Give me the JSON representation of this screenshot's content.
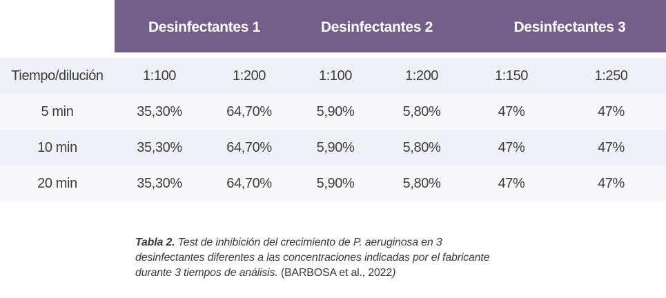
{
  "table": {
    "groups": [
      "Desinfectantes 1",
      "Desinfectantes 2",
      "Desinfectantes 3"
    ],
    "header_row": [
      "Tiempo/dilución",
      "1:100",
      "1:200",
      "1:100",
      "1:200",
      "1:150",
      "1:250"
    ],
    "rows": [
      [
        "5 min",
        "35,30%",
        "64,70%",
        "5,90%",
        "5,80%",
        "47%",
        "47%"
      ],
      [
        "10 min",
        "35,30%",
        "64,70%",
        "5,90%",
        "5,80%",
        "47%",
        "47%"
      ],
      [
        "20 min",
        "35,30%",
        "64,70%",
        "5,90%",
        "5,80%",
        "47%",
        "47%"
      ]
    ]
  },
  "caption": {
    "label": "Tabla 2.",
    "line1": " Test de inhibición del crecimiento de P. aeruginosa en 3",
    "line2": "desinfectantes diferentes a las concentraciones indicadas por el fabricante",
    "line3": "durante 3 tiempos de análisis. ",
    "source": "(BARBOSA et al., 2022",
    "source_close": ")"
  },
  "colors": {
    "header_bg": "#735e89",
    "header_text": "#ffffff",
    "row_tint": "#eef1f7",
    "row_plain": "#f7f8fb",
    "text": "#3d3d3d"
  }
}
